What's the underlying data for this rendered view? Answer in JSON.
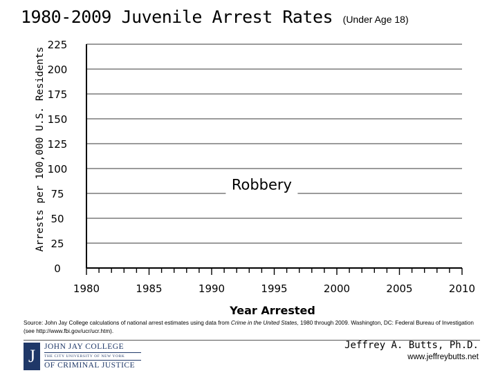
{
  "slide": {
    "title": "1980-2009 Juvenile Arrest Rates",
    "title_suffix": "(Under Age 18)",
    "author": "Jeffrey A. Butts, Ph.D.",
    "website": "www.jeffreybutts.net"
  },
  "source": {
    "prefix": "Source: John Jay College calculations of national arrest estimates using data from ",
    "italic": "Crime in the United States,",
    "suffix": " 1980 through 2009. Washington, DC: Federal Bureau of Investigation (see http://www.fbi.gov/ucr/ucr.htm)."
  },
  "logo": {
    "mark": "J",
    "line1": "JOHN JAY COLLEGE",
    "line2": "THE CITY UNIVERSITY OF NEW YORK",
    "line3": "OF CRIMINAL JUSTICE"
  },
  "chart_data": {
    "type": "line",
    "title": "",
    "xlabel": "Year Arrested",
    "ylabel": "Arrests per 100,000 U.S. Residents",
    "xlim": [
      1980,
      2010
    ],
    "ylim": [
      0,
      225
    ],
    "x_ticks": [
      1980,
      1985,
      1990,
      1995,
      2000,
      2005,
      2010
    ],
    "y_ticks": [
      0,
      25,
      50,
      75,
      100,
      125,
      150,
      175,
      200,
      225
    ],
    "x_tick_labels": [
      "1980",
      "1985",
      "1990",
      "1995",
      "2000",
      "2005",
      "2010"
    ],
    "y_tick_labels": [
      "0",
      "25",
      "50",
      "75",
      "100",
      "125",
      "150",
      "175",
      "200",
      "225"
    ],
    "grid": true,
    "series": [],
    "annotations": [
      {
        "text": "Robbery",
        "x": 1994,
        "y": 83
      }
    ],
    "colors": {
      "grid": "#7a7a7a",
      "axis": "#000000"
    }
  }
}
